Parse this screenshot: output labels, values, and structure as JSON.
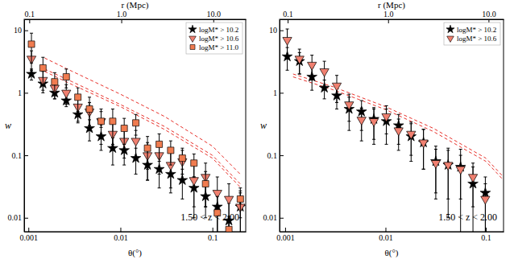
{
  "chart_data": [
    {
      "type": "scatter",
      "log": true,
      "legend": "upper right",
      "xlabel": "θ(°)",
      "x2label": "r (Mpc)",
      "ylabel": "w",
      "annotations": [
        "1.50 < z < 2.00"
      ],
      "xlim": [
        0.0009,
        0.23
      ],
      "xticks": [
        0.001,
        0.01,
        0.1
      ],
      "x2lim": [
        0.088,
        22.5
      ],
      "x2ticks": [
        0.1,
        {
          "value": 1,
          "label": "1.0"
        },
        {
          "value": 10,
          "label": "10.0"
        }
      ],
      "ylim": [
        0.006,
        15
      ],
      "yticks": [
        0.01,
        0.1,
        1,
        10
      ],
      "series": [
        {
          "name": "logM* > 10.2",
          "color": "#000000",
          "marker": "star",
          "x": [
            0.00108,
            0.00144,
            0.00193,
            0.00258,
            0.00345,
            0.00461,
            0.00617,
            0.00825,
            0.011,
            0.0147,
            0.0197,
            0.0264,
            0.0352,
            0.0471,
            0.063,
            0.0842,
            0.113,
            0.151,
            0.201
          ],
          "values": [
            2.0,
            1.4,
            1.0,
            0.75,
            0.45,
            0.27,
            0.2,
            0.13,
            0.12,
            0.09,
            0.07,
            0.06,
            0.05,
            0.04,
            0.03,
            0.022,
            0.015,
            0.009,
            0.015
          ],
          "errors": [
            0.4,
            0.3,
            0.2,
            0.15,
            0.12,
            0.1,
            0.08,
            0.06,
            0.05,
            0.04,
            0.03,
            0.03,
            0.025,
            0.02,
            0.015,
            0.012,
            0.01,
            0.008,
            0.01
          ]
        },
        {
          "name": "logM* > 10.6",
          "color": "#f08070",
          "marker": "triangle-down",
          "x": [
            0.00108,
            0.00144,
            0.00193,
            0.00258,
            0.00345,
            0.00461,
            0.00617,
            0.00825,
            0.011,
            0.0147,
            0.0197,
            0.0264,
            0.0352,
            0.0471,
            0.063,
            0.0842,
            0.113,
            0.151,
            0.201
          ],
          "values": [
            3.5,
            1.6,
            1.2,
            1.0,
            0.6,
            0.5,
            0.35,
            0.22,
            0.17,
            0.17,
            0.1,
            0.1,
            0.07,
            0.08,
            0.04,
            0.045,
            0.025,
            0.02,
            0.015
          ],
          "errors": [
            1.2,
            0.6,
            0.4,
            0.35,
            0.25,
            0.2,
            0.15,
            0.1,
            0.08,
            0.08,
            0.06,
            0.05,
            0.04,
            0.04,
            0.03,
            0.03,
            0.02,
            0.015,
            0.012
          ]
        },
        {
          "name": "logM* > 11.0",
          "color": "#f07c50",
          "marker": "square",
          "x": [
            0.00108,
            0.00144,
            0.00193,
            0.00258,
            0.00345,
            0.00461,
            0.00617,
            0.00825,
            0.011,
            0.0147,
            0.0197,
            0.0264,
            0.0352,
            0.0471,
            0.063,
            0.0842,
            0.113,
            0.151,
            0.201
          ],
          "values": [
            6.0,
            2.5,
            1.5,
            1.8,
            0.85,
            0.55,
            0.35,
            0.35,
            0.27,
            0.33,
            0.13,
            0.15,
            0.12,
            0.09,
            0.075,
            0.035,
            0.012,
            0.0065,
            0.02
          ],
          "errors": [
            3.0,
            1.2,
            0.6,
            0.6,
            0.35,
            0.3,
            0.2,
            0.2,
            0.12,
            0.12,
            0.07,
            0.07,
            0.05,
            0.04,
            0.03,
            0.02,
            0.01,
            0.004,
            0.01
          ]
        },
        {
          "type": "line",
          "color": "#e8302a",
          "line_style": "dashed",
          "x": [
            0.0015,
            0.003,
            0.01,
            0.03,
            0.1,
            0.2
          ],
          "values": [
            3.6,
            2.2,
            0.95,
            0.42,
            0.14,
            0.05
          ]
        },
        {
          "type": "line",
          "color": "#e8302a",
          "line_style": "dashed",
          "x": [
            0.0015,
            0.003,
            0.01,
            0.03,
            0.1,
            0.2
          ],
          "values": [
            2.4,
            1.5,
            0.65,
            0.29,
            0.1,
            0.035
          ]
        },
        {
          "type": "line",
          "color": "#e8302a",
          "line_style": "dashed",
          "x": [
            0.0015,
            0.003,
            0.01,
            0.03,
            0.1,
            0.2
          ],
          "values": [
            2.2,
            1.35,
            0.6,
            0.26,
            0.09,
            0.031
          ]
        }
      ]
    },
    {
      "type": "scatter",
      "log": true,
      "legend": "upper right",
      "xlabel": "θ(°)",
      "x2label": "r (Mpc)",
      "ylabel": "w",
      "annotations": [
        "1.50 < z < 2.00"
      ],
      "xlim": [
        0.00088,
        0.15
      ],
      "xticks": [
        0.001,
        0.01,
        0.1
      ],
      "x2lim": [
        0.083,
        14.1
      ],
      "x2ticks": [
        0.1,
        {
          "value": 1,
          "label": "1.0"
        },
        {
          "value": 10,
          "label": "10.0"
        }
      ],
      "ylim": [
        0.006,
        15
      ],
      "yticks": [
        0.01,
        0.1,
        1,
        10
      ],
      "series": [
        {
          "name": "logM* > 10.2",
          "color": "#000000",
          "marker": "star",
          "x": [
            0.00105,
            0.00139,
            0.00185,
            0.00246,
            0.00327,
            0.00434,
            0.00577,
            0.00766,
            0.0102,
            0.0135,
            0.018,
            0.0239,
            0.0317,
            0.0421,
            0.056,
            0.0744,
            0.0988
          ],
          "values": [
            3.8,
            3.2,
            1.8,
            1.2,
            0.9,
            0.55,
            0.5,
            0.38,
            0.35,
            0.3,
            0.2,
            0.16,
            0.08,
            0.07,
            0.065,
            0.035,
            0.025
          ],
          "errors": [
            1.5,
            1.2,
            0.7,
            0.4,
            0.35,
            0.3,
            0.25,
            0.2,
            0.2,
            0.15,
            0.12,
            0.1,
            0.06,
            0.06,
            0.06,
            0.03,
            0.02
          ]
        },
        {
          "name": "logM* > 10.6",
          "color": "#f08070",
          "marker": "triangle-down",
          "x": [
            0.00105,
            0.00139,
            0.00185,
            0.00246,
            0.00327,
            0.00434,
            0.00577,
            0.00766,
            0.0102,
            0.0135,
            0.018,
            0.0239,
            0.0317,
            0.0421,
            0.056,
            0.0744,
            0.0988
          ],
          "values": [
            7.0,
            3.5,
            2.8,
            2.2,
            1.3,
            0.65,
            0.37,
            0.35,
            0.42,
            0.25,
            0.22,
            0.16,
            0.075,
            0.07,
            0.06,
            0.045,
            0.02
          ],
          "errors": [
            3.5,
            1.5,
            1.2,
            1.0,
            0.6,
            0.3,
            0.2,
            0.2,
            0.2,
            0.13,
            0.12,
            0.1,
            0.05,
            0.05,
            0.04,
            0.03,
            0.015
          ]
        },
        {
          "type": "line",
          "color": "#e8302a",
          "line_style": "dashed",
          "x": [
            0.0012,
            0.003,
            0.01,
            0.03,
            0.1,
            0.15
          ],
          "values": [
            2.0,
            1.25,
            0.6,
            0.27,
            0.09,
            0.045
          ]
        },
        {
          "type": "line",
          "color": "#e8302a",
          "line_style": "dashed",
          "x": [
            0.0012,
            0.003,
            0.01,
            0.03,
            0.1,
            0.15
          ],
          "values": [
            1.8,
            1.12,
            0.54,
            0.24,
            0.08,
            0.04
          ]
        }
      ]
    }
  ]
}
